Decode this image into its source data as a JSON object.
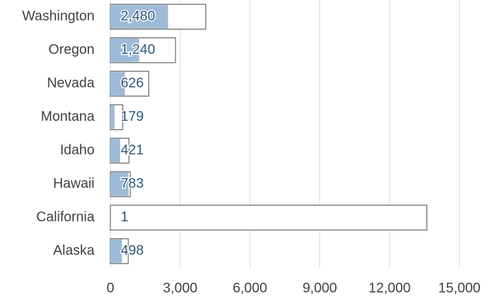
{
  "chart_data": {
    "type": "bar",
    "orientation": "horizontal",
    "categories": [
      "Washington",
      "Oregon",
      "Nevada",
      "Montana",
      "Idaho",
      "Hawaii",
      "California",
      "Alaska"
    ],
    "series": [
      {
        "color": "#9dbbd9",
        "values": [
          2480,
          1240,
          626,
          179,
          421,
          783,
          1,
          498
        ],
        "value_labels": [
          "2,480",
          "1,240",
          "626",
          "179",
          "421",
          "783",
          "1",
          "498"
        ]
      },
      {
        "color": "#808080",
        "values": [
          4100,
          2800,
          1650,
          530,
          800,
          860,
          13600,
          770
        ]
      }
    ],
    "xlim": [
      0,
      15000
    ],
    "xticks": [
      0,
      {
        "value": 3000,
        "label": "3,000"
      },
      {
        "value": 6000,
        "label": "6,000"
      },
      {
        "value": 9000,
        "label": "9,000"
      },
      {
        "value": 12000,
        "label": "12,000"
      },
      {
        "value": 15000,
        "label": "15,000"
      }
    ],
    "grid": true
  }
}
